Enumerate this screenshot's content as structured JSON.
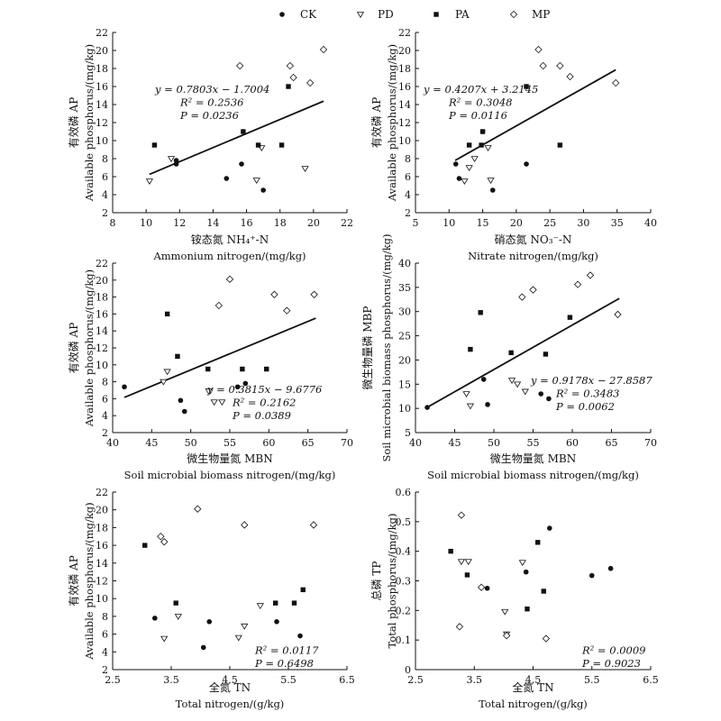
{
  "legend": [
    {
      "label": "CK",
      "marker": "circle"
    },
    {
      "label": "PD",
      "marker": "triangle"
    },
    {
      "label": "PA",
      "marker": "square"
    },
    {
      "label": "MP",
      "marker": "diamond"
    }
  ],
  "chart_data": [
    {
      "type": "scatter",
      "xlabel_cn": "铵态氮  NH₄⁺-N",
      "xlabel_en": "Ammonium nitrogen/(mg/kg)",
      "ylabel_cn": "有效磷 AP",
      "ylabel_en": "Available phosphorus/(mg/kg)",
      "xlim": [
        8,
        22
      ],
      "xticks": [
        8,
        10,
        12,
        14,
        16,
        18,
        20,
        22
      ],
      "xtick_labels": [
        "8",
        "10",
        "12",
        "14",
        "16",
        "18",
        "20",
        "22"
      ],
      "ylim": [
        2,
        22
      ],
      "yticks": [
        2,
        4,
        6,
        8,
        10,
        12,
        14,
        16,
        18,
        20,
        22
      ],
      "ytick_labels": [
        "2",
        "4",
        "6",
        "8",
        "10",
        "12",
        "14",
        "16",
        "18",
        "20",
        "22"
      ],
      "series": [
        {
          "name": "CK",
          "points": [
            [
              11.8,
              7.8
            ],
            [
              11.8,
              7.4
            ],
            [
              14.8,
              5.8
            ],
            [
              15.7,
              7.4
            ],
            [
              17.0,
              4.5
            ]
          ]
        },
        {
          "name": "PD",
          "points": [
            [
              10.2,
              5.5
            ],
            [
              11.5,
              8.0
            ],
            [
              16.6,
              5.6
            ],
            [
              16.9,
              9.2
            ],
            [
              19.5,
              6.9
            ]
          ]
        },
        {
          "name": "PA",
          "points": [
            [
              10.5,
              9.5
            ],
            [
              15.8,
              11.0
            ],
            [
              16.7,
              9.5
            ],
            [
              18.1,
              9.5
            ],
            [
              18.5,
              16.0
            ]
          ]
        },
        {
          "name": "MP",
          "points": [
            [
              15.6,
              18.3
            ],
            [
              18.6,
              18.3
            ],
            [
              18.8,
              17.0
            ],
            [
              19.8,
              16.4
            ],
            [
              20.6,
              20.1
            ]
          ]
        }
      ],
      "fit": {
        "slope": 0.7803,
        "intercept": -1.7004,
        "x_range": [
          10.2,
          20.6
        ]
      },
      "annotations": {
        "eq": "y = 0.7803x − 1.7004",
        "r2": "R² = 0.2536",
        "p": "P = 0.0236"
      }
    },
    {
      "type": "scatter",
      "xlabel_cn": "硝态氮  NO₃⁻-N",
      "xlabel_en": "Nitrate nitrogen/(mg/kg)",
      "ylabel_cn": "有效磷 AP",
      "ylabel_en": "Available phosphorus/(mg/kg)",
      "xlim": [
        5,
        40
      ],
      "xticks": [
        5,
        10,
        15,
        20,
        25,
        30,
        35,
        40
      ],
      "xtick_labels": [
        "5",
        "10",
        "15",
        "20",
        "25",
        "30",
        "35",
        "40"
      ],
      "ylim": [
        2,
        22
      ],
      "yticks": [
        2,
        4,
        6,
        8,
        10,
        12,
        14,
        16,
        18,
        20,
        22
      ],
      "ytick_labels": [
        "2",
        "4",
        "6",
        "8",
        "10",
        "12",
        "14",
        "16",
        "18",
        "20",
        "22"
      ],
      "series": [
        {
          "name": "CK",
          "points": [
            [
              11.0,
              7.4
            ],
            [
              11.5,
              5.8
            ],
            [
              15.0,
              11.0
            ],
            [
              16.5,
              4.5
            ],
            [
              21.5,
              7.4
            ]
          ]
        },
        {
          "name": "PD",
          "points": [
            [
              12.3,
              5.5
            ],
            [
              13.0,
              7.0
            ],
            [
              13.8,
              8.0
            ],
            [
              15.8,
              9.2
            ],
            [
              16.2,
              5.6
            ]
          ]
        },
        {
          "name": "PA",
          "points": [
            [
              13.0,
              9.5
            ],
            [
              14.8,
              9.5
            ],
            [
              15.0,
              11.0
            ],
            [
              21.5,
              16.0
            ],
            [
              26.5,
              9.5
            ]
          ]
        },
        {
          "name": "MP",
          "points": [
            [
              23.3,
              20.1
            ],
            [
              24.0,
              18.3
            ],
            [
              26.5,
              18.3
            ],
            [
              28.0,
              17.1
            ],
            [
              34.8,
              16.4
            ]
          ]
        }
      ],
      "fit": {
        "slope": 0.4207,
        "intercept": 3.2145,
        "x_range": [
          10.9,
          34.8
        ]
      },
      "annotations": {
        "eq": "y = 0.4207x + 3.2145",
        "r2": "R² = 0.3048",
        "p": "P = 0.0116"
      }
    },
    {
      "type": "scatter",
      "xlabel_cn": "微生物量氮  MBN",
      "xlabel_en": "Soil microbial biomass nitrogen/(mg/kg)",
      "ylabel_cn": "有效磷 AP",
      "ylabel_en": "Available phosphorus/(mg/kg)",
      "xlim": [
        40,
        70
      ],
      "xticks": [
        40,
        45,
        50,
        55,
        60,
        65,
        70
      ],
      "xtick_labels": [
        "40",
        "45",
        "50",
        "55",
        "60",
        "65",
        "70"
      ],
      "ylim": [
        2,
        22
      ],
      "yticks": [
        2,
        4,
        6,
        8,
        10,
        12,
        14,
        16,
        18,
        20,
        22
      ],
      "ytick_labels": [
        "2",
        "4",
        "6",
        "8",
        "10",
        "12",
        "14",
        "16",
        "18",
        "20",
        "22"
      ],
      "series": [
        {
          "name": "CK",
          "points": [
            [
              41.5,
              7.4
            ],
            [
              48.7,
              5.8
            ],
            [
              49.2,
              4.5
            ],
            [
              56.0,
              7.4
            ],
            [
              57.0,
              7.8
            ]
          ]
        },
        {
          "name": "PD",
          "points": [
            [
              46.5,
              8.0
            ],
            [
              47.0,
              9.2
            ],
            [
              52.3,
              6.9
            ],
            [
              53.0,
              5.6
            ],
            [
              54.0,
              5.6
            ]
          ]
        },
        {
          "name": "PA",
          "points": [
            [
              47.0,
              16.0
            ],
            [
              48.3,
              11.0
            ],
            [
              52.2,
              9.5
            ],
            [
              56.6,
              9.5
            ],
            [
              59.7,
              9.5
            ]
          ]
        },
        {
          "name": "MP",
          "points": [
            [
              53.6,
              17.0
            ],
            [
              55.0,
              20.1
            ],
            [
              60.7,
              18.3
            ],
            [
              62.3,
              16.4
            ],
            [
              65.8,
              18.3
            ]
          ]
        }
      ],
      "fit": {
        "slope": 0.3815,
        "intercept": -9.6776,
        "x_range": [
          41.5,
          66.0
        ]
      },
      "annotations": {
        "eq": "y = 0.3815x − 9.6776",
        "r2": "R² = 0.2162",
        "p": "P = 0.0389"
      }
    },
    {
      "type": "scatter",
      "xlabel_cn": "微生物量氮  MBN",
      "xlabel_en": "Soil microbial biomass nitrogen/(mg/kg)",
      "ylabel_cn": "微生物量磷 MBP",
      "ylabel_en": "Soil microbial biomass phosphorus/(mg/kg)",
      "xlim": [
        40,
        70
      ],
      "xticks": [
        40,
        45,
        50,
        55,
        60,
        65,
        70
      ],
      "xtick_labels": [
        "40",
        "45",
        "50",
        "55",
        "60",
        "65",
        "70"
      ],
      "ylim": [
        5,
        40
      ],
      "yticks": [
        5,
        10,
        15,
        20,
        25,
        30,
        35,
        40
      ],
      "ytick_labels": [
        "5",
        "10",
        "15",
        "20",
        "25",
        "30",
        "35",
        "40"
      ],
      "series": [
        {
          "name": "CK",
          "points": [
            [
              41.5,
              10.2
            ],
            [
              48.7,
              16.0
            ],
            [
              49.2,
              10.8
            ],
            [
              56.0,
              13.0
            ],
            [
              57.0,
              12.0
            ]
          ]
        },
        {
          "name": "PD",
          "points": [
            [
              46.5,
              13.0
            ],
            [
              47.0,
              10.5
            ],
            [
              52.3,
              15.8
            ],
            [
              53.0,
              15.0
            ],
            [
              54.0,
              13.5
            ]
          ]
        },
        {
          "name": "PA",
          "points": [
            [
              47.0,
              22.2
            ],
            [
              48.3,
              29.8
            ],
            [
              52.2,
              21.5
            ],
            [
              56.6,
              21.2
            ],
            [
              59.7,
              28.8
            ]
          ]
        },
        {
          "name": "MP",
          "points": [
            [
              53.6,
              33.0
            ],
            [
              55.0,
              34.5
            ],
            [
              60.7,
              35.6
            ],
            [
              62.3,
              37.5
            ],
            [
              65.8,
              29.4
            ]
          ]
        }
      ],
      "fit": {
        "slope": 0.9178,
        "intercept": -27.8587,
        "x_range": [
          41.5,
          66.0
        ]
      },
      "annotations": {
        "eq": "y = 0.9178x − 27.8587",
        "r2": "R² = 0.3483",
        "p": "P = 0.0062"
      }
    },
    {
      "type": "scatter",
      "xlabel_cn": "全氮  TN",
      "xlabel_en": "Total nitrogen/(g/kg)",
      "ylabel_cn": "有效磷 AP",
      "ylabel_en": "Available phosphorus/(mg/kg)",
      "xlim": [
        2.5,
        6.5
      ],
      "xticks": [
        2.5,
        3.5,
        4.5,
        5.5,
        6.5
      ],
      "xtick_labels": [
        "2.5",
        "3.5",
        "4.5",
        "5.5",
        "6.5"
      ],
      "ylim": [
        2,
        22
      ],
      "yticks": [
        2,
        4,
        6,
        8,
        10,
        12,
        14,
        16,
        18,
        20,
        22
      ],
      "ytick_labels": [
        "2",
        "4",
        "6",
        "8",
        "10",
        "12",
        "14",
        "16",
        "18",
        "20",
        "22"
      ],
      "series": [
        {
          "name": "CK",
          "points": [
            [
              3.22,
              7.8
            ],
            [
              4.05,
              4.5
            ],
            [
              4.15,
              7.4
            ],
            [
              5.3,
              7.4
            ],
            [
              5.7,
              5.8
            ]
          ]
        },
        {
          "name": "PD",
          "points": [
            [
              3.38,
              5.5
            ],
            [
              3.62,
              8.0
            ],
            [
              4.65,
              5.6
            ],
            [
              4.75,
              6.9
            ],
            [
              5.02,
              9.2
            ]
          ]
        },
        {
          "name": "PA",
          "points": [
            [
              3.05,
              16.0
            ],
            [
              3.58,
              9.5
            ],
            [
              5.28,
              9.5
            ],
            [
              5.6,
              9.5
            ],
            [
              5.75,
              11.0
            ]
          ]
        },
        {
          "name": "MP",
          "points": [
            [
              3.32,
              17.0
            ],
            [
              3.38,
              16.4
            ],
            [
              3.95,
              20.1
            ],
            [
              4.75,
              18.3
            ],
            [
              5.93,
              18.3
            ]
          ]
        }
      ],
      "annotations": {
        "r2": "R² = 0.0117",
        "p": "P = 0.6498"
      }
    },
    {
      "type": "scatter",
      "xlabel_cn": "全氮  TN",
      "xlabel_en": "Total nitrogen/(g/kg)",
      "ylabel_cn": "总磷 TP",
      "ylabel_en": "Total phosphorus/(mg/kg)",
      "xlim": [
        2.5,
        6.5
      ],
      "xticks": [
        2.5,
        3.5,
        4.5,
        5.5,
        6.5
      ],
      "xtick_labels": [
        "2.5",
        "3.5",
        "4.5",
        "5.5",
        "6.5"
      ],
      "ylim": [
        0,
        0.6
      ],
      "yticks": [
        0,
        0.1,
        0.2,
        0.3,
        0.4,
        0.5,
        0.6
      ],
      "ytick_labels": [
        "0",
        "0.1",
        "0.2",
        "0.3",
        "0.4",
        "0.5",
        "0.6"
      ],
      "series": [
        {
          "name": "CK",
          "points": [
            [
              3.72,
              0.275
            ],
            [
              4.38,
              0.33
            ],
            [
              4.78,
              0.478
            ],
            [
              5.5,
              0.318
            ],
            [
              5.82,
              0.342
            ]
          ]
        },
        {
          "name": "PD",
          "points": [
            [
              3.28,
              0.365
            ],
            [
              3.4,
              0.365
            ],
            [
              4.02,
              0.196
            ],
            [
              4.05,
              0.12
            ],
            [
              4.32,
              0.362
            ]
          ]
        },
        {
          "name": "PA",
          "points": [
            [
              3.1,
              0.4
            ],
            [
              3.38,
              0.32
            ],
            [
              4.4,
              0.205
            ],
            [
              4.58,
              0.43
            ],
            [
              4.68,
              0.265
            ]
          ]
        },
        {
          "name": "MP",
          "points": [
            [
              3.25,
              0.145
            ],
            [
              3.28,
              0.522
            ],
            [
              3.62,
              0.278
            ],
            [
              4.05,
              0.115
            ],
            [
              4.72,
              0.105
            ]
          ]
        }
      ],
      "annotations": {
        "r2": "R² = 0.0009",
        "p": "P = 0.9023"
      }
    }
  ]
}
